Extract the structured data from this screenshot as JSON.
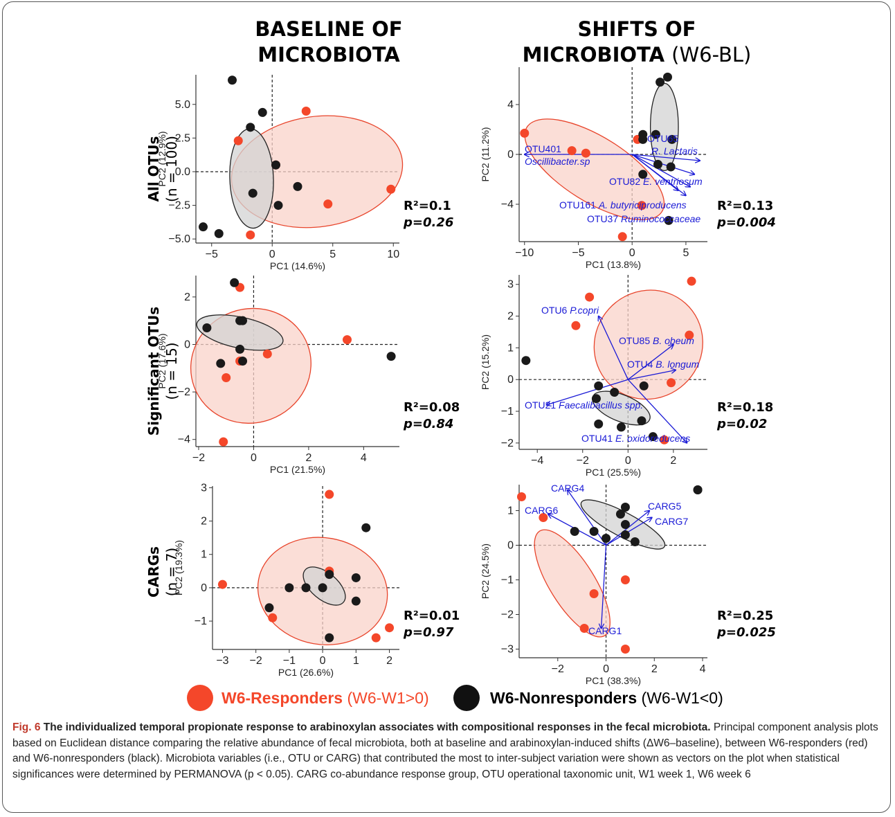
{
  "headers": {
    "left": "BASELINE OF MICROBIOTA",
    "right_bold": "SHIFTS OF MICROBIOTA",
    "right_normal": "(W6-BL)"
  },
  "rows": [
    {
      "label": "All OTUs",
      "n": "(n = 100)"
    },
    {
      "label": "Significant OTUs",
      "n": "(n = 15)"
    },
    {
      "label": "CARGs",
      "n": "(n = 7)"
    }
  ],
  "colors": {
    "responder": "#f4472a",
    "nonresponder": "#1a1a1a",
    "resp_ellipse_fill": "#f9d3c9",
    "resp_ellipse_stroke": "#e8442b",
    "nonresp_ellipse_fill": "#d3d3d3",
    "vector": "#1a1ad6"
  },
  "legend": {
    "responder_bold": "W6-Responders",
    "responder_normal": "(W6-W1>0)",
    "nonresponder_bold": "W6-Nonresponders",
    "nonresponder_normal": "(W6-W1<0)"
  },
  "caption": {
    "fig": "Fig. 6",
    "title": "The individualized temporal propionate response to arabinoxylan associates with compositional responses in the fecal microbiota.",
    "body": "Principal component analysis plots based on Euclidean distance comparing the relative abundance of fecal microbiota, both at baseline and arabinoxylan-induced shifts (ΔW6–baseline), between W6-responders (red) and W6-nonresponders (black). Microbiota variables (i.e., OTU or CARG) that contributed the most to inter-subject variation were shown as vectors on the plot when statistical significances were determined by PERMANOVA (p < 0.05).",
    "abbrev": "CARG co-abundance response group, OTU operational taxonomic unit, W1 week 1, W6 week 6"
  },
  "chart_data": [
    {
      "type": "scatter",
      "panel": "All OTUs baseline",
      "xlabel": "PC1 (14.6%)",
      "ylabel": "PC2 (12.9%)",
      "xlim": [
        -6.3,
        10.5
      ],
      "ylim": [
        -5.3,
        7.2
      ],
      "xticks": [
        -5,
        0,
        5,
        10
      ],
      "yticks": [
        -5.0,
        -2.5,
        0.0,
        2.5,
        5.0
      ],
      "ytick_labels": [
        "-5.0",
        "-2.5",
        "0.0",
        "2.5",
        "5.0"
      ],
      "stats": {
        "r2": "R²=0.1",
        "p": "p=0.26"
      },
      "responders": [
        [
          2.8,
          4.5
        ],
        [
          -2.8,
          2.3
        ],
        [
          0.3,
          0.5
        ],
        [
          4.6,
          -2.4
        ],
        [
          9.8,
          -1.3
        ],
        [
          -1.8,
          -4.7
        ]
      ],
      "nonresponders": [
        [
          -3.3,
          6.8
        ],
        [
          -0.8,
          4.4
        ],
        [
          -1.8,
          3.3
        ],
        [
          0.3,
          0.5
        ],
        [
          2.1,
          -1.1
        ],
        [
          0.5,
          -2.5
        ],
        [
          -1.6,
          -1.6
        ],
        [
          -5.7,
          -4.1
        ],
        [
          -4.4,
          -4.6
        ]
      ],
      "resp_ellipse": {
        "cx": 3.7,
        "cy": 0.0,
        "rx": 7.1,
        "ry": 4.1,
        "angle": 8
      },
      "nonresp_ellipse": {
        "cx": -1.7,
        "cy": -0.5,
        "rx": 1.8,
        "ry": 3.7,
        "angle": 2
      },
      "vectors": []
    },
    {
      "type": "scatter",
      "panel": "All OTUs shifts",
      "xlabel": "PC1 (13.8%)",
      "ylabel": "PC2 (11.2%)",
      "xlim": [
        -10.5,
        7
      ],
      "ylim": [
        -7,
        7
      ],
      "xticks": [
        -10,
        -5,
        0,
        5
      ],
      "yticks": [
        -4,
        0,
        4
      ],
      "ytick_labels": [
        "-4",
        "0",
        "4"
      ],
      "stats": {
        "r2": "R²=0.13",
        "p": "p=0.004"
      },
      "responders": [
        [
          -10,
          1.7
        ],
        [
          -5.6,
          0.3
        ],
        [
          -4.3,
          0.1
        ],
        [
          0.5,
          1.2
        ],
        [
          0.9,
          -4.1
        ],
        [
          -0.9,
          -6.6
        ]
      ],
      "nonresponders": [
        [
          2.6,
          5.8
        ],
        [
          3.3,
          6.2
        ],
        [
          1.0,
          1.6
        ],
        [
          2.2,
          1.6
        ],
        [
          1.0,
          1.2
        ],
        [
          3.7,
          1.2
        ],
        [
          2.4,
          -0.8
        ],
        [
          3.6,
          -1.0
        ],
        [
          1.0,
          -1.6
        ],
        [
          3.4,
          -5.3
        ]
      ],
      "resp_ellipse": {
        "cx": -3.5,
        "cy": -1.2,
        "rx": 7.4,
        "ry": 2.6,
        "angle": -32
      },
      "nonresp_ellipse": {
        "cx": 3.0,
        "cy": 2.2,
        "rx": 1.3,
        "ry": 3.5,
        "angle": 0
      },
      "vectors": [
        {
          "label": "OTU401",
          "label2": "Oscillibacter.sp",
          "x": -10.0,
          "y": 0.0
        },
        {
          "label": "OTU65",
          "label2": "R. Lactaris",
          "x": 6.3,
          "y": -0.5
        },
        {
          "label": "OTU82 E. ventriosum",
          "label2": "",
          "x": 5.8,
          "y": -1.6
        },
        {
          "label": "OTU161 A. butyriciproducens",
          "label2": "",
          "x": 5.0,
          "y": -3.3
        },
        {
          "label": "OTU37 Ruminococcaceae",
          "label2": "",
          "x": 4.3,
          "y": -2.9
        },
        {
          "label": "",
          "label2": "",
          "x": 5.4,
          "y": -2.6
        }
      ]
    },
    {
      "type": "scatter",
      "panel": "Significant OTUs baseline",
      "xlabel": "PC1 (21.5%)",
      "ylabel": "PC2 (17.6%)",
      "xlim": [
        -2.1,
        5.3
      ],
      "ylim": [
        -4.3,
        2.9
      ],
      "xticks": [
        -2,
        0,
        2,
        4
      ],
      "yticks": [
        -4,
        -2,
        0,
        2
      ],
      "ytick_labels": [
        "-4",
        "-2",
        "0",
        "2"
      ],
      "stats": {
        "r2": "R²=0.08",
        "p": "p=0.84"
      },
      "responders": [
        [
          -0.5,
          2.4
        ],
        [
          -0.5,
          -0.7
        ],
        [
          0.5,
          -0.4
        ],
        [
          -1.0,
          -1.4
        ],
        [
          3.4,
          0.2
        ],
        [
          -1.1,
          -4.1
        ]
      ],
      "nonresponders": [
        [
          -0.7,
          2.6
        ],
        [
          -1.7,
          0.7
        ],
        [
          -0.5,
          1.0
        ],
        [
          -0.4,
          1.0
        ],
        [
          -0.5,
          -0.2
        ],
        [
          -1.2,
          -0.8
        ],
        [
          -0.4,
          -0.7
        ],
        [
          5.0,
          -0.5
        ]
      ],
      "resp_ellipse": {
        "cx": -0.1,
        "cy": -0.9,
        "rx": 2.2,
        "ry": 2.4,
        "angle": 20
      },
      "nonresp_ellipse": {
        "cx": -0.5,
        "cy": 0.5,
        "rx": 1.6,
        "ry": 0.65,
        "angle": -12
      },
      "vectors": []
    },
    {
      "type": "scatter",
      "panel": "Significant OTUs shifts",
      "xlabel": "PC1 (25.5%)",
      "ylabel": "PC2 (15.2%)",
      "xlim": [
        -4.8,
        3.5
      ],
      "ylim": [
        -2.2,
        3.3
      ],
      "xticks": [
        -4,
        -2,
        0,
        2
      ],
      "yticks": [
        -2,
        -1,
        0,
        1,
        2,
        3
      ],
      "ytick_labels": [
        "-2",
        "-1",
        "0",
        "1",
        "2",
        "3"
      ],
      "stats": {
        "r2": "R²=0.18",
        "p": "p=0.02"
      },
      "responders": [
        [
          -1.7,
          2.6
        ],
        [
          -2.3,
          1.7
        ],
        [
          2.8,
          3.1
        ],
        [
          2.7,
          1.4
        ],
        [
          1.9,
          -0.1
        ],
        [
          1.6,
          -1.9
        ]
      ],
      "nonresponders": [
        [
          -4.5,
          0.6
        ],
        [
          -1.3,
          -0.2
        ],
        [
          -0.6,
          -0.4
        ],
        [
          0.7,
          -0.2
        ],
        [
          -1.4,
          -0.6
        ],
        [
          -1.3,
          -1.4
        ],
        [
          -0.3,
          -1.5
        ],
        [
          0.6,
          -1.3
        ],
        [
          1.1,
          -1.8
        ]
      ],
      "resp_ellipse": {
        "cx": 0.9,
        "cy": 1.1,
        "rx": 2.35,
        "ry": 1.75,
        "angle": -42
      },
      "nonresp_ellipse": {
        "cx": -0.3,
        "cy": -0.9,
        "rx": 1.35,
        "ry": 0.42,
        "angle": -22
      },
      "vectors": [
        {
          "label": "OTU6 P.copri",
          "label2": "",
          "x": -1.3,
          "y": 2.0
        },
        {
          "label": "OTU85 B. obeum",
          "label2": "",
          "x": 2.0,
          "y": 1.1
        },
        {
          "label": "OTU4 B. longum",
          "label2": "",
          "x": 2.1,
          "y": 0.3
        },
        {
          "label": "OTU21 Faecalibacillus spp.",
          "label2": "",
          "x": -3.6,
          "y": -0.8
        },
        {
          "label": "OTU41 E. oxidoreducens",
          "label2": "",
          "x": 2.6,
          "y": -2.0
        }
      ]
    },
    {
      "type": "scatter",
      "panel": "CARGs baseline",
      "xlabel": "PC1 (26.6%)",
      "ylabel": "PC2 (19.3%)",
      "xlim": [
        -3.3,
        2.3
      ],
      "ylim": [
        -1.85,
        3.05
      ],
      "xticks": [
        -3,
        -2,
        -1,
        0,
        1,
        2
      ],
      "yticks": [
        -1,
        0,
        1,
        2,
        3
      ],
      "ytick_labels": [
        "-1",
        "0",
        "1",
        "2",
        "3"
      ],
      "stats": {
        "r2": "R²=0.01",
        "p": "p=0.97"
      },
      "responders": [
        [
          0.2,
          2.8
        ],
        [
          0.2,
          0.5
        ],
        [
          -3.0,
          0.1
        ],
        [
          -1.5,
          -0.9
        ],
        [
          1.6,
          -1.5
        ],
        [
          2.0,
          -1.2
        ]
      ],
      "nonresponders": [
        [
          1.3,
          1.8
        ],
        [
          0.2,
          0.4
        ],
        [
          -1.0,
          0.0
        ],
        [
          -0.5,
          0.0
        ],
        [
          0.0,
          0.0
        ],
        [
          1.0,
          0.3
        ],
        [
          -1.6,
          -0.6
        ],
        [
          1.0,
          -0.4
        ],
        [
          0.2,
          -1.5
        ]
      ],
      "resp_ellipse": {
        "cx": 0.0,
        "cy": -0.1,
        "rx": 1.95,
        "ry": 1.6,
        "angle": -10
      },
      "nonresp_ellipse": {
        "cx": 0.05,
        "cy": 0.05,
        "rx": 0.75,
        "ry": 0.4,
        "angle": -40
      },
      "vectors": []
    },
    {
      "type": "scatter",
      "panel": "CARGs shifts",
      "xlabel": "PC1 (38.3%)",
      "ylabel": "PC2 (24.5%)",
      "xlim": [
        -3.6,
        4.2
      ],
      "ylim": [
        -3.25,
        1.75
      ],
      "xticks": [
        -2,
        0,
        2,
        4
      ],
      "yticks": [
        -3,
        -2,
        -1,
        0,
        1
      ],
      "ytick_labels": [
        "-3",
        "-2",
        "-1",
        "0",
        "1"
      ],
      "stats": {
        "r2": "R²=0.25",
        "p": "p=0.025"
      },
      "responders": [
        [
          -3.5,
          1.4
        ],
        [
          -2.6,
          0.8
        ],
        [
          0.8,
          -1.0
        ],
        [
          -0.5,
          -1.4
        ],
        [
          -0.9,
          -2.4
        ],
        [
          0.8,
          -3.0
        ]
      ],
      "nonresponders": [
        [
          3.8,
          1.6
        ],
        [
          -1.3,
          0.4
        ],
        [
          -0.5,
          0.4
        ],
        [
          0.6,
          0.9
        ],
        [
          0.8,
          1.1
        ],
        [
          0.8,
          0.6
        ],
        [
          0.0,
          0.2
        ],
        [
          0.8,
          0.3
        ],
        [
          1.2,
          0.1
        ],
        [
          3.8,
          1.6
        ]
      ],
      "resp_ellipse": {
        "cx": -1.4,
        "cy": -1.1,
        "rx": 2.55,
        "ry": 0.65,
        "angle": -58
      },
      "nonresp_ellipse": {
        "cx": 0.7,
        "cy": 0.6,
        "rx": 1.95,
        "ry": 0.35,
        "angle": -28
      },
      "vectors": [
        {
          "label": "CARG4",
          "label2": "",
          "x": -1.6,
          "y": 1.6
        },
        {
          "label": "CARG6",
          "label2": "",
          "x": -2.4,
          "y": 0.9
        },
        {
          "label": "CARG5",
          "label2": "",
          "x": 1.8,
          "y": 1.0
        },
        {
          "label": "CARG7",
          "label2": "",
          "x": 1.9,
          "y": 0.8
        },
        {
          "label": "CARG1",
          "label2": "",
          "x": -0.2,
          "y": -2.4
        }
      ]
    }
  ]
}
